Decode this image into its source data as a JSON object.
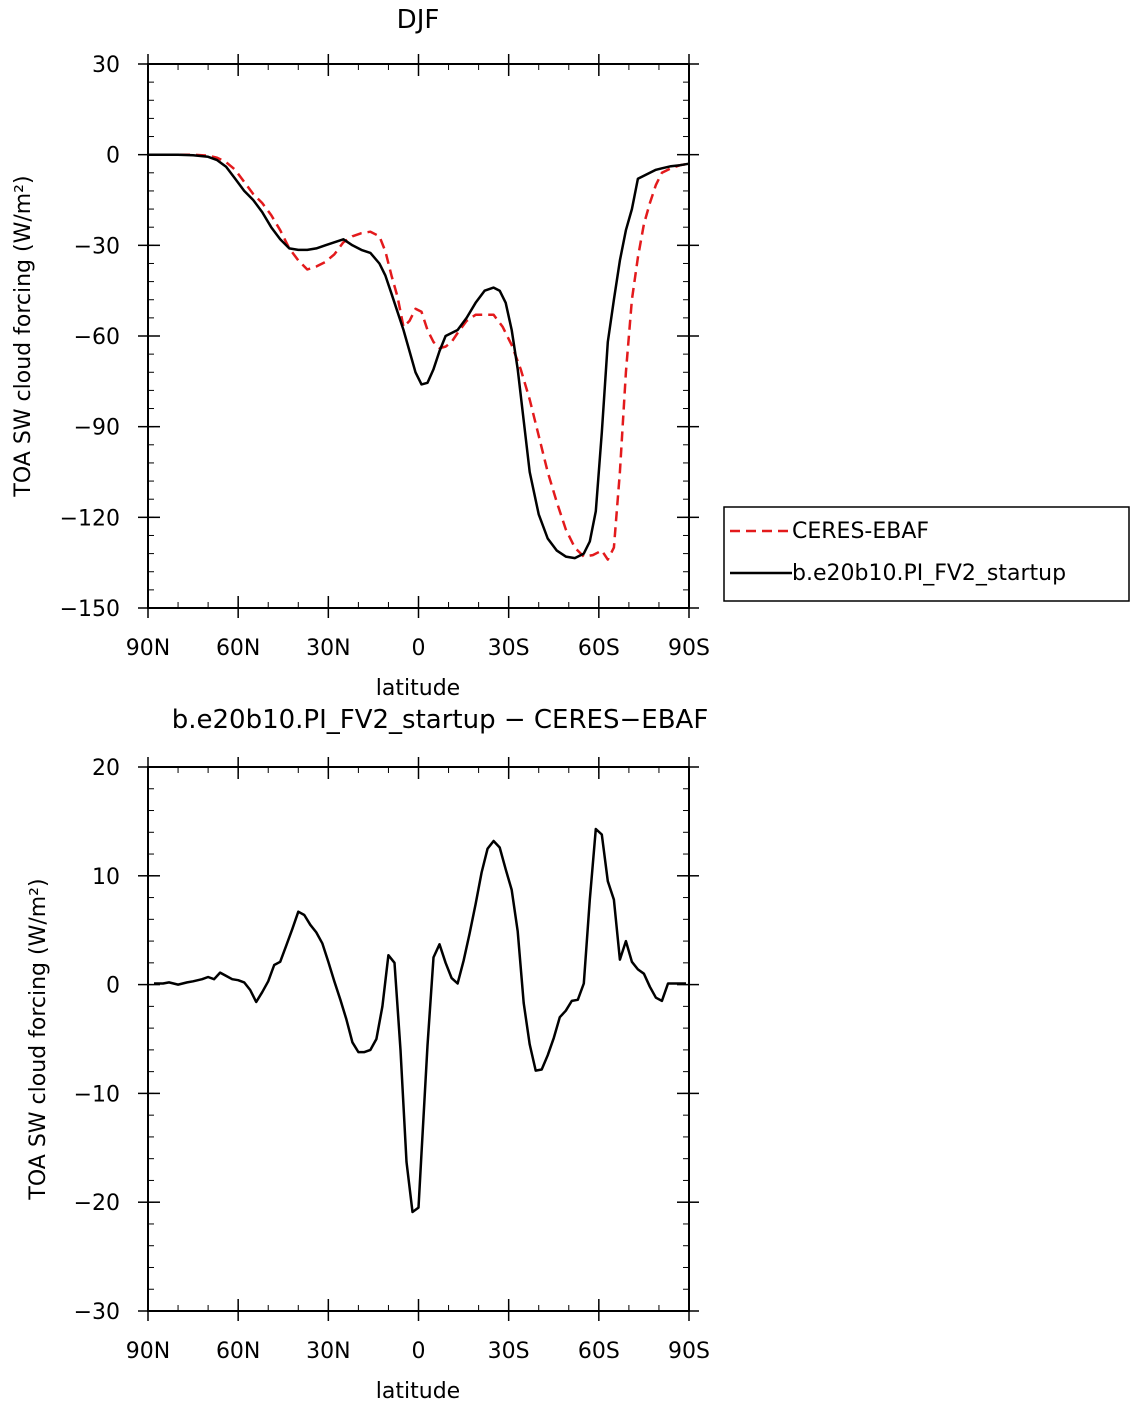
{
  "chart_data": [
    {
      "type": "line",
      "title": "DJF",
      "xlabel": "latitude",
      "ylabel": "TOA SW cloud forcing (W/m²)",
      "xlim": [
        -90,
        90
      ],
      "ylim": [
        -150,
        30
      ],
      "xticks": [
        -90,
        -60,
        -30,
        0,
        30,
        60,
        90
      ],
      "xtick_labels": [
        "90N",
        "60N",
        "30N",
        "0",
        "30S",
        "60S",
        "90S"
      ],
      "yticks": [
        30,
        0,
        -30,
        -60,
        -90,
        -120,
        -150
      ],
      "ytick_labels": [
        "30",
        "0",
        "−30",
        "−60",
        "−90",
        "−120",
        "−150"
      ],
      "legend_position": "right",
      "series": [
        {
          "name": "CERES-EBAF",
          "color": "#e31a1c",
          "dash": "dashed",
          "x": [
            -90,
            -85,
            -80,
            -75,
            -70,
            -67,
            -64,
            -61,
            -58,
            -55,
            -52,
            -49,
            -46,
            -43,
            -40,
            -37,
            -34,
            -31,
            -28,
            -25,
            -22,
            -19,
            -16,
            -13,
            -11,
            -9,
            -7,
            -5,
            -3,
            -1,
            1,
            3,
            5,
            7,
            9,
            11,
            13,
            16,
            19,
            22,
            25,
            28,
            31,
            34,
            37,
            40,
            43,
            46,
            49,
            52,
            55,
            58,
            61,
            63,
            65,
            67,
            69,
            71,
            73,
            75,
            77,
            79,
            81,
            84,
            87,
            90
          ],
          "y": [
            0,
            0,
            0,
            0,
            -0.3,
            -1,
            -2.5,
            -5,
            -9,
            -13,
            -16,
            -20,
            -25,
            -31,
            -35,
            -38,
            -37,
            -35.5,
            -33,
            -29,
            -27,
            -26,
            -25.5,
            -27,
            -32,
            -40,
            -47,
            -57,
            -55,
            -51,
            -52,
            -58,
            -62,
            -64,
            -63.5,
            -62,
            -59,
            -55,
            -53,
            -53,
            -53,
            -57,
            -63,
            -71,
            -81,
            -93,
            -105,
            -115,
            -124,
            -130,
            -133,
            -132.5,
            -131,
            -134,
            -130,
            -105,
            -72,
            -48,
            -34,
            -23,
            -16,
            -10,
            -6,
            -4.5,
            -3.5,
            -3
          ]
        },
        {
          "name": "b.e20b10.PI_FV2_startup",
          "color": "#000000",
          "dash": "solid",
          "x": [
            -90,
            -85,
            -80,
            -75,
            -70,
            -67,
            -64,
            -61,
            -58,
            -55,
            -52,
            -49,
            -46,
            -43,
            -40,
            -37,
            -34,
            -31,
            -28,
            -25,
            -22,
            -19,
            -16,
            -13,
            -11,
            -9,
            -7,
            -5,
            -3,
            -1,
            1,
            3,
            5,
            7,
            9,
            11,
            13,
            16,
            19,
            22,
            25,
            27,
            29,
            31,
            33,
            35,
            37,
            40,
            43,
            46,
            49,
            52,
            55,
            57,
            59,
            61,
            63,
            65,
            67,
            69,
            71,
            73,
            75,
            77,
            79,
            81,
            84,
            87,
            90
          ],
          "y": [
            0,
            0,
            0,
            -0.2,
            -0.7,
            -1.8,
            -4,
            -8,
            -12,
            -15,
            -19,
            -24,
            -28,
            -31,
            -31.5,
            -31.5,
            -31,
            -30,
            -29,
            -28,
            -30,
            -31.5,
            -32.5,
            -36,
            -40,
            -46,
            -52,
            -58,
            -65,
            -72,
            -76,
            -75.5,
            -71,
            -65,
            -60,
            -59,
            -58,
            -54,
            -49,
            -45,
            -44,
            -45,
            -49,
            -58,
            -71,
            -88,
            -105,
            -119,
            -127,
            -131,
            -133,
            -133.5,
            -132,
            -128,
            -118,
            -92,
            -62,
            -48,
            -35,
            -25,
            -18,
            -8,
            -7,
            -6,
            -5,
            -4.5,
            -3.8,
            -3.5,
            -3
          ]
        }
      ]
    },
    {
      "type": "line",
      "title": "b.e20b10.PI_FV2_startup − CERES−EBAF",
      "xlabel": "latitude",
      "ylabel": "TOA SW cloud forcing (W/m²)",
      "xlim": [
        -90,
        90
      ],
      "ylim": [
        -30,
        20
      ],
      "xticks": [
        -90,
        -60,
        -30,
        0,
        30,
        60,
        90
      ],
      "xtick_labels": [
        "90N",
        "60N",
        "30N",
        "0",
        "30S",
        "60S",
        "90S"
      ],
      "yticks": [
        20,
        10,
        0,
        -10,
        -20,
        -30
      ],
      "ytick_labels": [
        "20",
        "10",
        "0",
        "−10",
        "−20",
        "−30"
      ],
      "series": [
        {
          "name": "",
          "color": "#000000",
          "dash": "solid",
          "x": [
            -88,
            -85,
            -83,
            -80,
            -77,
            -75,
            -72,
            -70,
            -68,
            -66,
            -64,
            -62,
            -60,
            -58,
            -56,
            -54,
            -52,
            -50,
            -48,
            -46,
            -44,
            -42,
            -40,
            -38,
            -36,
            -34,
            -32,
            -30,
            -28,
            -26,
            -24,
            -22,
            -20,
            -18,
            -16,
            -14,
            -12,
            -10,
            -8,
            -6,
            -4,
            -2,
            0,
            1,
            3,
            5,
            7,
            9,
            11,
            13,
            15,
            17,
            19,
            21,
            23,
            25,
            27,
            29,
            31,
            33,
            35,
            37,
            39,
            41,
            43,
            45,
            47,
            49,
            51,
            53,
            55,
            57,
            59,
            61,
            63,
            65,
            67,
            69,
            71,
            73,
            75,
            77,
            79,
            81,
            83,
            85,
            87,
            89
          ],
          "y": [
            0.1,
            0.1,
            0.2,
            0,
            0.2,
            0.3,
            0.5,
            0.7,
            0.5,
            1.1,
            0.8,
            0.5,
            0.4,
            0.2,
            -0.5,
            -1.6,
            -0.7,
            0.3,
            1.8,
            2.1,
            3.6,
            5.1,
            6.7,
            6.4,
            5.5,
            4.8,
            3.8,
            2.1,
            0.3,
            -1.4,
            -3.2,
            -5.3,
            -6.2,
            -6.2,
            -6,
            -5,
            -2,
            2.7,
            2,
            -6,
            -16.3,
            -20.9,
            -20.5,
            -15.5,
            -5.6,
            2.5,
            3.7,
            2,
            0.6,
            0.1,
            2.2,
            4.7,
            7.4,
            10.3,
            12.5,
            13.2,
            12.6,
            10.6,
            8.7,
            4.9,
            -1.7,
            -5.5,
            -7.9,
            -7.8,
            -6.5,
            -4.9,
            -3,
            -2.4,
            -1.5,
            -1.4,
            0.1,
            7.8,
            14.3,
            13.8,
            9.5,
            7.8,
            2.3,
            4,
            2.1,
            1.4,
            1,
            -0.2,
            -1.2,
            -1.5,
            0.1,
            0.1,
            0.1,
            0.1
          ]
        }
      ]
    }
  ]
}
